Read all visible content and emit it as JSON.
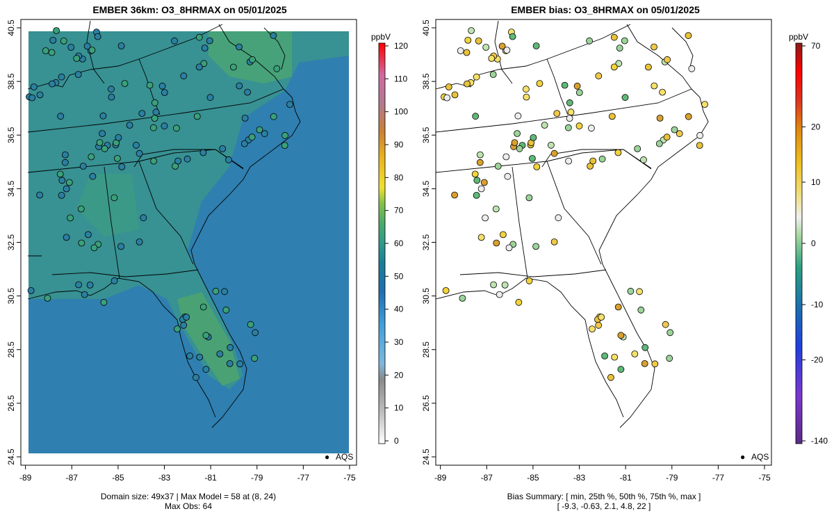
{
  "chart_data": [
    {
      "type": "map",
      "title": "EMBER 36km: O3_8HRMAX on 05/01/2025",
      "x_ticks": [
        "-89",
        "-87",
        "-85",
        "-83",
        "-81",
        "-79",
        "-77",
        "-75"
      ],
      "y_ticks": [
        "24.5",
        "26.5",
        "28.5",
        "30.5",
        "32.5",
        "34.5",
        "36.5",
        "38.5",
        "40.5"
      ],
      "xlim": [
        -89.2,
        -74.7
      ],
      "ylim": [
        24.5,
        40.5
      ],
      "legend": {
        "marker": "●",
        "label": "AQS",
        "placement": "bottom-right"
      },
      "footer": [
        "Domain size: 49x37 | Max Model = 58 at (8, 24)",
        "Max Obs: 64"
      ],
      "colorbar": {
        "unit": "ppbV",
        "ticks": [
          "0",
          "10",
          "20",
          "30",
          "40",
          "50",
          "60",
          "70",
          "80",
          "90",
          "100",
          "110",
          "120"
        ],
        "range": [
          0,
          120
        ]
      }
    },
    {
      "type": "map",
      "title": "EMBER bias: O3_8HRMAX on 05/01/2025",
      "x_ticks": [
        "-89",
        "-87",
        "-85",
        "-83",
        "-81",
        "-79",
        "-77",
        "-75"
      ],
      "y_ticks": [
        "24.5",
        "26.5",
        "28.5",
        "30.5",
        "32.5",
        "34.5",
        "36.5",
        "38.5",
        "40.5"
      ],
      "xlim": [
        -89.2,
        -74.7
      ],
      "ylim": [
        24.5,
        40.5
      ],
      "legend": {
        "marker": "●",
        "label": "AQS",
        "placement": "bottom-right"
      },
      "footer": [
        "Bias Summary: [ min, 25th %, 50th %, 75th %, max ]",
        "[ -9.3,   -0.63,   2.1,   4.8,   22 ]"
      ],
      "colorbar": {
        "unit": "ppbV",
        "ticks": [
          "70",
          "20",
          "10",
          "0",
          "-10",
          "-20",
          "-140"
        ]
      },
      "bias_summary": {
        "min": -9.3,
        "p25": -0.63,
        "p50": 2.1,
        "p75": 4.8,
        "max": 22
      }
    }
  ]
}
